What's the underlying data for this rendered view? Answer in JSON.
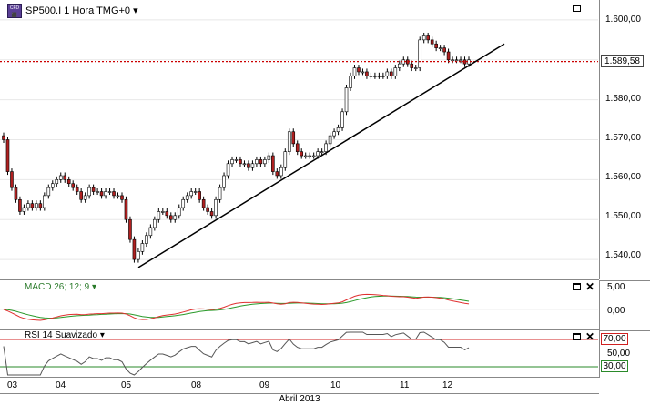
{
  "header": {
    "icon": "cfd-icon",
    "title": "SP500.I 1 Hora TMG+0",
    "dropdown_glyph": "▾"
  },
  "price_axis": {
    "ticks": [
      "1.600,00",
      "1.590,00",
      "1.580,00",
      "1.570,00",
      "1.560,00",
      "1.550,00",
      "1.540,00"
    ],
    "current_price": "1.589,58"
  },
  "macd": {
    "label": "MACD 26; 12; 9",
    "dropdown_glyph": "▾",
    "ticks": [
      "5,00",
      "0,00"
    ],
    "macd_color": "#e03030",
    "signal_color": "#2a9a2a"
  },
  "rsi": {
    "label": "RSI 14 Suavizado",
    "dropdown_glyph": "▾",
    "upper_level": "70,00",
    "mid_level": "50,00",
    "lower_level": "30,00",
    "upper_color": "#d02020",
    "lower_color": "#2a8a2a"
  },
  "time_axis": {
    "dates": [
      "03",
      "04",
      "05",
      "08",
      "09",
      "10",
      "11",
      "12"
    ],
    "month": "Abril 2013"
  },
  "colors": {
    "bull_candle": "#ffffff",
    "bear_candle": "#b02020",
    "candle_outline": "#000000",
    "price_line": "#cc0000",
    "trendline": "#000000"
  },
  "chart_data": {
    "type": "candlestick",
    "symbol": "SP500.I",
    "timeframe": "1 Hora",
    "ylim": [
      1535,
      1605
    ],
    "trendline": {
      "start": [
        1538,
        "05"
      ],
      "end": [
        1594,
        "12"
      ]
    },
    "current_price": 1589.58,
    "closes": [
      1570,
      1562,
      1558,
      1555,
      1552,
      1553,
      1554,
      1553,
      1554,
      1553,
      1556,
      1558,
      1559,
      1560,
      1561,
      1560,
      1559,
      1558,
      1557,
      1555,
      1556,
      1558,
      1557,
      1557,
      1556,
      1557,
      1557,
      1556,
      1556,
      1555,
      1550,
      1545,
      1540,
      1542,
      1544,
      1546,
      1548,
      1550,
      1552,
      1552,
      1551,
      1550,
      1551,
      1553,
      1555,
      1556,
      1557,
      1557,
      1555,
      1553,
      1552,
      1551,
      1555,
      1558,
      1561,
      1564,
      1565,
      1565,
      1564,
      1564,
      1563,
      1564,
      1565,
      1564,
      1565,
      1566,
      1562,
      1561,
      1563,
      1567,
      1572,
      1569,
      1567,
      1566,
      1566,
      1566,
      1566,
      1567,
      1567,
      1569,
      1571,
      1572,
      1573,
      1577,
      1583,
      1586,
      1588,
      1587,
      1587,
      1586,
      1586,
      1586,
      1586,
      1586,
      1587,
      1586,
      1588,
      1589,
      1590,
      1589,
      1588,
      1588,
      1595,
      1596,
      1595,
      1594,
      1593,
      1593,
      1592,
      1590,
      1590,
      1590,
      1590,
      1589,
      1590
    ]
  }
}
